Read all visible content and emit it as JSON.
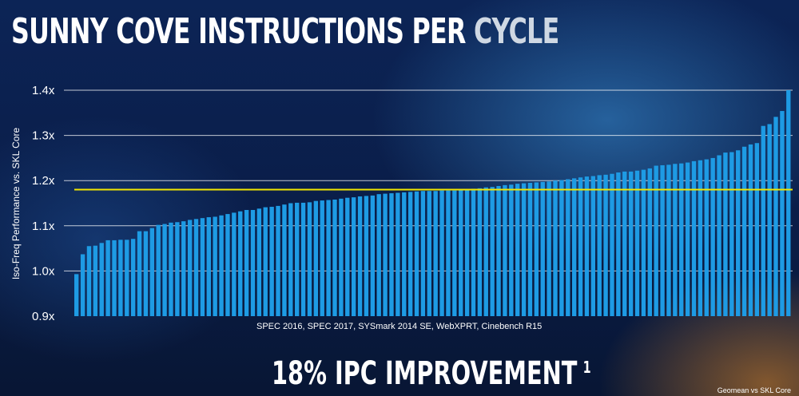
{
  "title_main": "SUNNY COVE INSTRUCTIONS PER",
  "title_accent": "CYCLE",
  "headline": "18% IPC IMPROVEMENT",
  "headline_superscript": "1",
  "footnote": "Geomean vs SKL Core",
  "colors": {
    "bar": "#1e9be4",
    "reference_line": "#f2e600",
    "grid": "#ffffff"
  },
  "chart_data": {
    "type": "bar",
    "title": "SUNNY COVE INSTRUCTIONS PER CYCLE",
    "xlabel": "SPEC 2016, SPEC 2017, SYSmark 2014 SE, WebXPRT, Cinebench R15",
    "ylabel": "Iso-Freq Performance vs. SKL Core",
    "ylim": [
      0.9,
      1.4
    ],
    "yticks": [
      0.9,
      1.0,
      1.1,
      1.2,
      1.3,
      1.4
    ],
    "ytick_labels": [
      "0.9x",
      "1.0x",
      "1.1x",
      "1.2x",
      "1.3x",
      "1.4x"
    ],
    "grid": true,
    "reference_line": {
      "value": 1.18
    },
    "values": [
      0.993,
      1.037,
      1.055,
      1.056,
      1.062,
      1.068,
      1.068,
      1.069,
      1.069,
      1.071,
      1.088,
      1.088,
      1.095,
      1.102,
      1.104,
      1.107,
      1.108,
      1.11,
      1.113,
      1.115,
      1.117,
      1.119,
      1.12,
      1.123,
      1.126,
      1.129,
      1.132,
      1.135,
      1.135,
      1.138,
      1.141,
      1.142,
      1.144,
      1.147,
      1.15,
      1.151,
      1.151,
      1.152,
      1.155,
      1.156,
      1.157,
      1.158,
      1.16,
      1.162,
      1.163,
      1.165,
      1.166,
      1.167,
      1.17,
      1.171,
      1.172,
      1.173,
      1.174,
      1.175,
      1.176,
      1.177,
      1.177,
      1.177,
      1.178,
      1.178,
      1.178,
      1.179,
      1.18,
      1.182,
      1.183,
      1.185,
      1.186,
      1.188,
      1.19,
      1.191,
      1.193,
      1.194,
      1.195,
      1.196,
      1.197,
      1.198,
      1.2,
      1.201,
      1.203,
      1.205,
      1.207,
      1.209,
      1.21,
      1.212,
      1.213,
      1.215,
      1.218,
      1.22,
      1.22,
      1.222,
      1.224,
      1.227,
      1.233,
      1.234,
      1.235,
      1.237,
      1.238,
      1.24,
      1.243,
      1.245,
      1.247,
      1.25,
      1.256,
      1.262,
      1.263,
      1.267,
      1.275,
      1.28,
      1.283,
      1.321,
      1.325,
      1.341,
      1.354,
      1.4
    ]
  }
}
